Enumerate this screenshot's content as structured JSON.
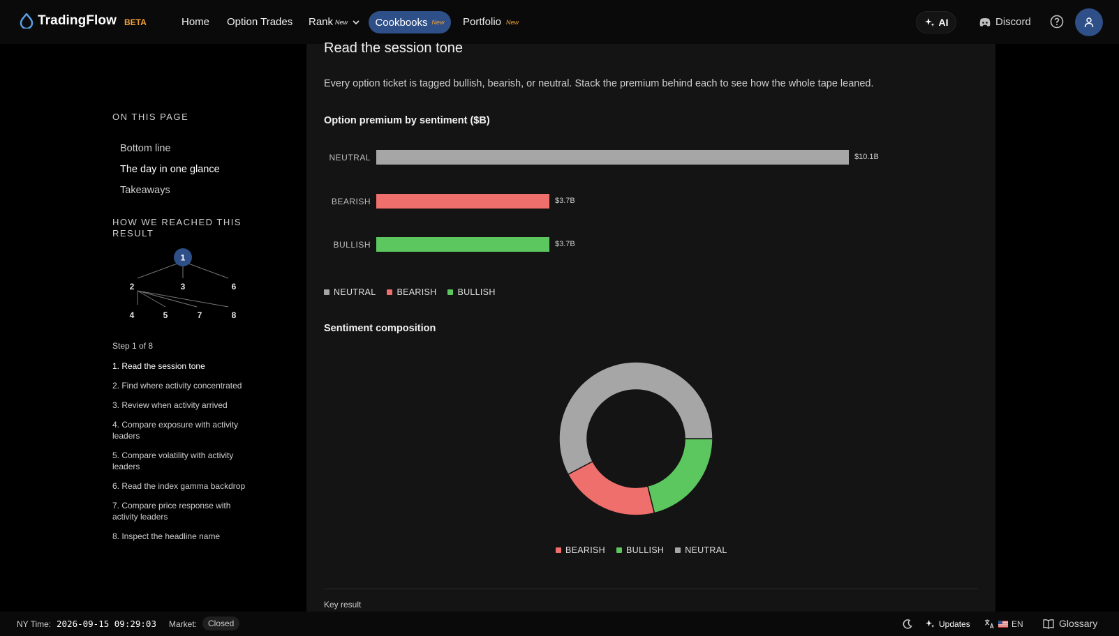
{
  "header": {
    "brand": "TradingFlow",
    "beta": "BETA",
    "nav": {
      "home": "Home",
      "option_trades": "Option Trades",
      "rank": "Rank",
      "rank_badge": "New",
      "cookbooks": "Cookbooks",
      "cookbooks_badge": "New",
      "portfolio": "Portfolio",
      "portfolio_badge": "New"
    },
    "ai": "AI",
    "discord": "Discord"
  },
  "sidebar": {
    "on_this_page": "ON THIS PAGE",
    "toc": [
      "Bottom line",
      "The day in one glance",
      "Takeaways"
    ],
    "how_heading": "HOW WE REACHED THIS RESULT",
    "graph_nodes": [
      "1",
      "2",
      "3",
      "6",
      "4",
      "5",
      "7",
      "8"
    ],
    "step_count": "Step 1 of 8",
    "steps": [
      "1.  Read the session tone",
      "2.  Find where activity concentrated",
      "3.  Review when activity arrived",
      "4.  Compare exposure with activity leaders",
      "5.  Compare volatility with activity leaders",
      "6.  Read the index gamma backdrop",
      "7.  Compare price response with activity leaders",
      "8.  Inspect the headline name"
    ]
  },
  "main": {
    "title": "Read the session tone",
    "description": "Every option ticket is tagged bullish, bearish, or neutral. Stack the premium behind each to see how the whole tape leaned.",
    "key_result": "Key result"
  },
  "colors": {
    "neutral": "#a6a6a6",
    "bearish": "#ef6f6c",
    "bullish": "#5cc65f",
    "accent": "#2e4f87",
    "beta": "#f2a33a"
  },
  "chart_data": [
    {
      "type": "bar",
      "title": "Option premium by sentiment ($B)",
      "categories": [
        "NEUTRAL",
        "BEARISH",
        "BULLISH"
      ],
      "values": [
        10.1,
        3.7,
        3.7
      ],
      "value_labels": [
        "$10.1B",
        "$3.7B",
        "$3.7B"
      ],
      "legend": [
        "NEUTRAL",
        "BEARISH",
        "BULLISH"
      ],
      "orientation": "horizontal"
    },
    {
      "type": "pie",
      "title": "Sentiment composition",
      "categories": [
        "BEARISH",
        "BULLISH",
        "NEUTRAL"
      ],
      "values": [
        3.7,
        3.7,
        10.1
      ],
      "legend": [
        "BEARISH",
        "BULLISH",
        "NEUTRAL"
      ],
      "donut": true
    }
  ],
  "footer": {
    "ny_time_label": "NY Time:",
    "ny_time": "2026-09-15 09:29:03",
    "market_label": "Market:",
    "market_status": "Closed",
    "updates": "Updates",
    "lang": "EN",
    "glossary": "Glossary"
  }
}
